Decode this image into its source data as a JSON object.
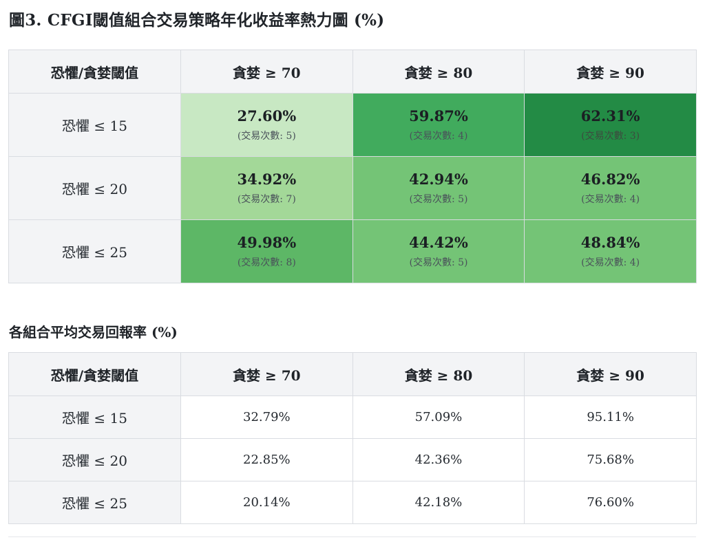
{
  "title": "圖3. CFGI閾值組合交易策略年化收益率熱力圖 (%)",
  "subtitle": "各組合平均交易回報率 (%)",
  "column_headers": [
    "恐懼/貪婪閾值",
    "貪婪 ≥ 70",
    "貪婪 ≥ 80",
    "貪婪 ≥ 90"
  ],
  "row_headers": [
    "恐懼 ≤ 15",
    "恐懼 ≤ 20",
    "恐懼 ≤ 25"
  ],
  "colors": {
    "heat_light": "#c8e8c3",
    "heat_mid_light": "#a3d898",
    "heat_mid": "#74c476",
    "heat_strong": "#5db766",
    "heat_deep": "#41ab5d",
    "heat_darkest": "#238b45"
  },
  "heatmap": {
    "rows": [
      [
        {
          "pct": "27.60%",
          "count": "(交易次數: 5)",
          "color": "#c8e8c3"
        },
        {
          "pct": "59.87%",
          "count": "(交易次數: 4)",
          "color": "#41ab5d"
        },
        {
          "pct": "62.31%",
          "count": "(交易次數: 3)",
          "color": "#238b45"
        }
      ],
      [
        {
          "pct": "34.92%",
          "count": "(交易次數: 7)",
          "color": "#a3d898"
        },
        {
          "pct": "42.94%",
          "count": "(交易次數: 5)",
          "color": "#74c476"
        },
        {
          "pct": "46.82%",
          "count": "(交易次數: 4)",
          "color": "#74c476"
        }
      ],
      [
        {
          "pct": "49.98%",
          "count": "(交易次數: 8)",
          "color": "#5db766"
        },
        {
          "pct": "44.42%",
          "count": "(交易次數: 5)",
          "color": "#74c476"
        },
        {
          "pct": "48.84%",
          "count": "(交易次數: 4)",
          "color": "#74c476"
        }
      ]
    ]
  },
  "returns": {
    "rows": [
      [
        "32.79%",
        "57.09%",
        "95.11%"
      ],
      [
        "22.85%",
        "42.36%",
        "75.68%"
      ],
      [
        "20.14%",
        "42.18%",
        "76.60%"
      ]
    ]
  }
}
